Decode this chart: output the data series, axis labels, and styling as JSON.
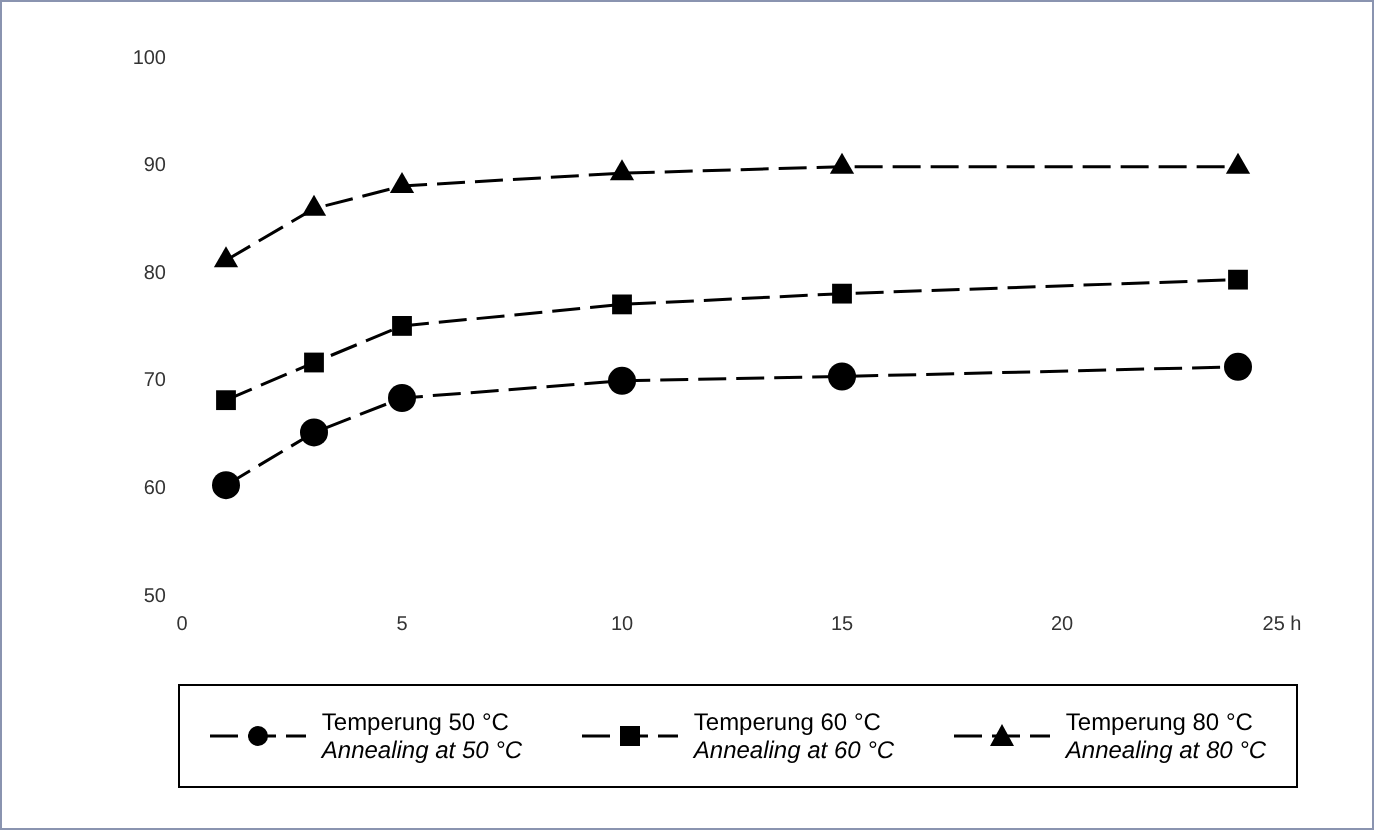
{
  "chart_data": {
    "type": "line",
    "x": [
      1,
      3,
      5,
      10,
      15,
      24
    ],
    "xlim": [
      0,
      25
    ],
    "xticks": [
      0,
      5,
      10,
      15,
      20,
      {
        "value": 25,
        "label": "25 h"
      }
    ],
    "ylim": [
      50,
      100
    ],
    "yticks": [
      50,
      60,
      70,
      80,
      90,
      100
    ],
    "grid": false,
    "legend": "bottom",
    "line_style": "dashed",
    "series": [
      {
        "name": "Temperung 50 °C\nAnnealing at 50 °C",
        "color": "#000000",
        "marker": "circle",
        "values": [
          60.3,
          65.2,
          68.4,
          70.0,
          70.4,
          71.3
        ]
      },
      {
        "name": "Temperung 60 °C\nAnnealing at 60 °C",
        "color": "#000000",
        "marker": "square",
        "values": [
          68.2,
          71.7,
          75.1,
          77.1,
          78.1,
          79.4
        ]
      },
      {
        "name": "Temperung 80 °C\nAnnealing at 80 °C",
        "color": "#000000",
        "marker": "triangle",
        "values": [
          81.2,
          86.0,
          88.1,
          89.3,
          89.9,
          89.9
        ]
      }
    ]
  }
}
